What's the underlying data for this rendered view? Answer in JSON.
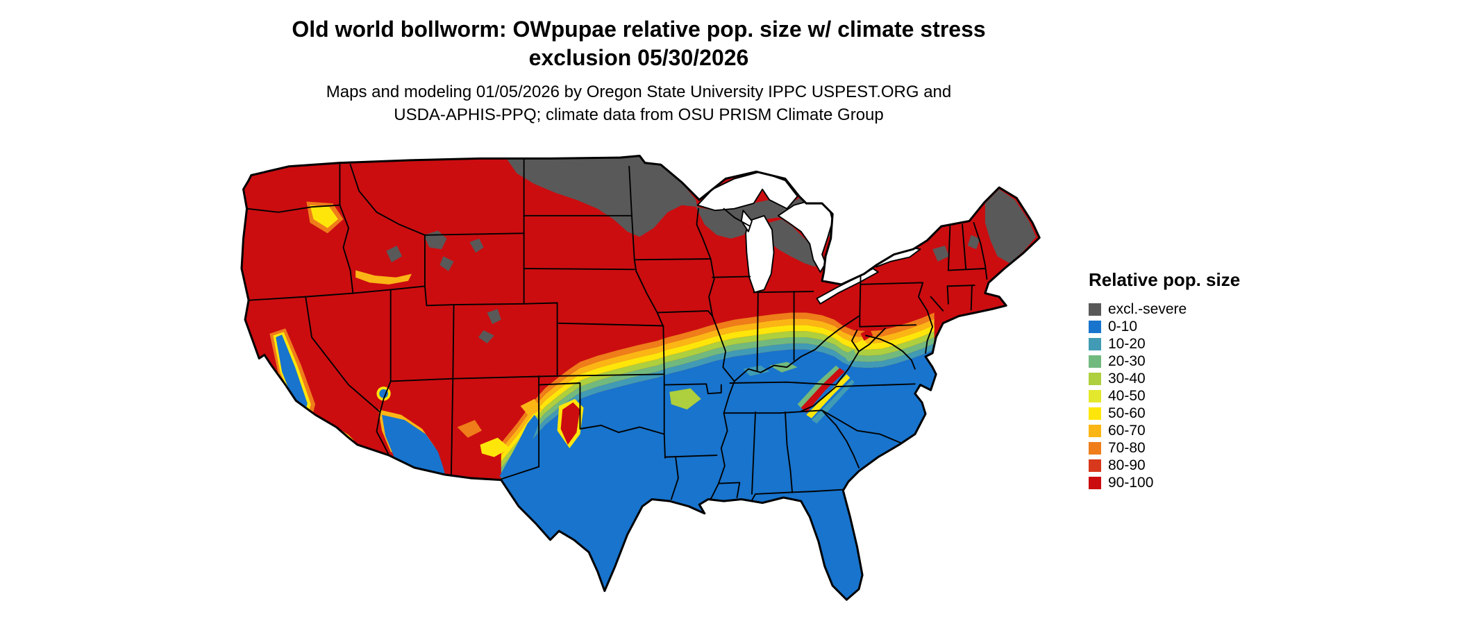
{
  "header": {
    "title_line1": "Old world bollworm: OWpupae relative pop. size w/ climate stress",
    "title_line2": "exclusion 05/30/2026",
    "subtitle_line1": "Maps and modeling 01/05/2026 by Oregon State University IPPC USPEST.ORG and",
    "subtitle_line2": "USDA-APHIS-PPQ; climate data from OSU PRISM Climate Group"
  },
  "legend": {
    "title": "Relative pop. size",
    "items": [
      {
        "label": "excl.-severe",
        "color": "#595959"
      },
      {
        "label": "0-10",
        "color": "#1874cd"
      },
      {
        "label": "10-20",
        "color": "#419bb4"
      },
      {
        "label": "20-30",
        "color": "#72b97e"
      },
      {
        "label": "30-40",
        "color": "#aecf3e"
      },
      {
        "label": "40-50",
        "color": "#e3e82c"
      },
      {
        "label": "50-60",
        "color": "#ffe60a"
      },
      {
        "label": "60-70",
        "color": "#fbb616"
      },
      {
        "label": "70-80",
        "color": "#ef7d1a"
      },
      {
        "label": "80-90",
        "color": "#d8381b"
      },
      {
        "label": "90-100",
        "color": "#cb0d10"
      }
    ]
  },
  "map": {
    "water_color": "#ffffff",
    "border_color": "#000000"
  }
}
